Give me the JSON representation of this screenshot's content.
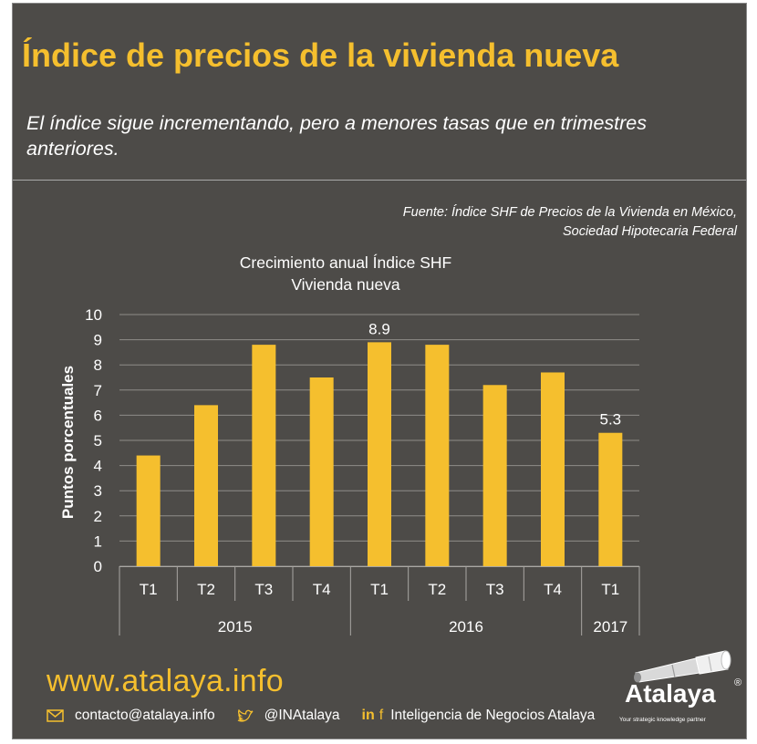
{
  "header": {
    "title": "Índice de precios de la vivienda nueva",
    "subtitle": "El índice sigue incrementando, pero a menores tasas que en trimestres anteriores."
  },
  "source": {
    "line1": "Fuente: Índice SHF de Precios de la Vivienda en México,",
    "line2": "Sociedad Hipotecaria Federal"
  },
  "chart_data": {
    "type": "bar",
    "title_line1": "Crecimiento anual Índice SHF",
    "title_line2": "Vivienda nueva",
    "ylabel": "Puntos porcentuales",
    "ylim": [
      0,
      10
    ],
    "yticks": [
      "0",
      "1",
      "2",
      "3",
      "4",
      "5",
      "6",
      "7",
      "8",
      "9",
      "10"
    ],
    "categories": [
      "T1",
      "T2",
      "T3",
      "T4",
      "T1",
      "T2",
      "T3",
      "T4",
      "T1"
    ],
    "groups": [
      {
        "label": "2015",
        "count": 4
      },
      {
        "label": "2016",
        "count": 4
      },
      {
        "label": "2017",
        "count": 1
      }
    ],
    "values": [
      4.4,
      6.4,
      8.8,
      7.5,
      8.9,
      8.8,
      7.2,
      7.7,
      5.3
    ],
    "data_labels": [
      {
        "index": 4,
        "text": "8.9"
      },
      {
        "index": 8,
        "text": "5.3"
      }
    ],
    "grid": true,
    "bar_color": "#f5bf2e"
  },
  "footer": {
    "url": "www.atalaya.info",
    "email": "contacto@atalaya.info",
    "twitter": "@INAtalaya",
    "linkedin_text": "in",
    "facebook_text": "f",
    "company": "Inteligencia de Negocios Atalaya"
  },
  "logo": {
    "name": "Atalaya",
    "registered": "®",
    "tagline": "Your strategic knowledge partner"
  },
  "colors": {
    "background": "#4d4b48",
    "accent": "#f5bf2e",
    "text": "#ffffff"
  }
}
